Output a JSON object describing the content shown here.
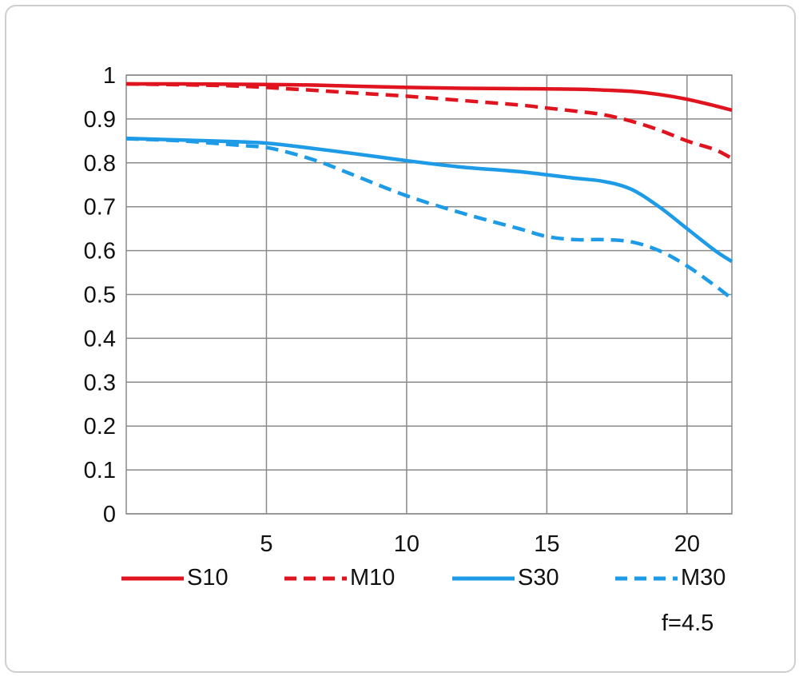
{
  "chart_data": {
    "type": "line",
    "xlim": [
      0,
      21.6
    ],
    "ylim": [
      0,
      1
    ],
    "x_ticks": [
      5,
      10,
      15,
      20
    ],
    "y_ticks": [
      0,
      0.1,
      0.2,
      0.3,
      0.4,
      0.5,
      0.6,
      0.7,
      0.8,
      0.9,
      1
    ],
    "x_tick_labels": [
      "5",
      "10",
      "15",
      "20"
    ],
    "y_tick_labels": [
      "0",
      "0.1",
      "0.2",
      "0.3",
      "0.4",
      "0.5",
      "0.6",
      "0.7",
      "0.8",
      "0.9",
      "1"
    ],
    "grid": true,
    "legend_position": "bottom",
    "annotation": "f=4.5",
    "series": [
      {
        "name": "S10",
        "color": "#e0141e",
        "style": "solid",
        "x": [
          0,
          2,
          4,
          6,
          8,
          10,
          12,
          14,
          16,
          17,
          18,
          19,
          20,
          21,
          21.6
        ],
        "y": [
          0.98,
          0.98,
          0.979,
          0.978,
          0.975,
          0.972,
          0.97,
          0.969,
          0.968,
          0.966,
          0.963,
          0.956,
          0.945,
          0.93,
          0.92
        ]
      },
      {
        "name": "M10",
        "color": "#e0141e",
        "style": "dashed",
        "x": [
          0,
          2,
          4,
          6,
          8,
          10,
          12,
          14,
          15,
          16,
          17,
          18,
          19,
          20,
          21,
          21.6
        ],
        "y": [
          0.98,
          0.978,
          0.975,
          0.968,
          0.96,
          0.952,
          0.942,
          0.932,
          0.925,
          0.918,
          0.91,
          0.895,
          0.875,
          0.85,
          0.83,
          0.81
        ]
      },
      {
        "name": "S30",
        "color": "#1e9be6",
        "style": "solid",
        "x": [
          0,
          2,
          4,
          5,
          6,
          8,
          10,
          12,
          14,
          16,
          17,
          18,
          19,
          20,
          21,
          21.6
        ],
        "y": [
          0.856,
          0.852,
          0.848,
          0.845,
          0.838,
          0.822,
          0.805,
          0.79,
          0.78,
          0.765,
          0.758,
          0.74,
          0.7,
          0.65,
          0.6,
          0.575
        ]
      },
      {
        "name": "M30",
        "color": "#1e9be6",
        "style": "dashed",
        "x": [
          0,
          2,
          4,
          5,
          6,
          7,
          8,
          10,
          12,
          14,
          15,
          16,
          17,
          18,
          19,
          20,
          21,
          21.6
        ],
        "y": [
          0.855,
          0.85,
          0.84,
          0.835,
          0.82,
          0.8,
          0.775,
          0.725,
          0.685,
          0.65,
          0.632,
          0.625,
          0.625,
          0.62,
          0.6,
          0.565,
          0.52,
          0.49
        ]
      }
    ]
  }
}
